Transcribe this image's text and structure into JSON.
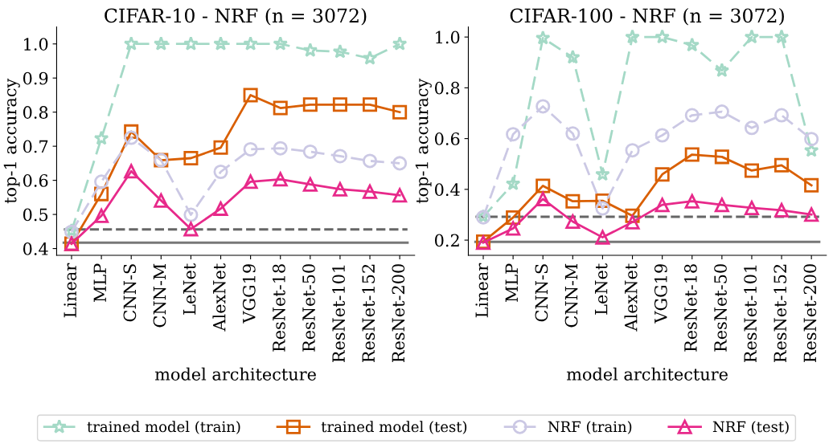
{
  "chart_data": [
    {
      "type": "line",
      "title": "CIFAR-10 - NRF (n = 3072)",
      "xlabel": "model architecture",
      "ylabel": "top-1 accuracy",
      "categories": [
        "Linear",
        "MLP",
        "CNN-S",
        "CNN-M",
        "LeNet",
        "AlexNet",
        "VGG19",
        "ResNet-18",
        "ResNet-50",
        "ResNet-101",
        "ResNet-152",
        "ResNet-200"
      ],
      "series": [
        {
          "name": "trained model (train)",
          "color": "#a4d9c6",
          "marker": "star",
          "line_style": "dashed",
          "values": [
            0.452,
            0.723,
            1.0,
            1.0,
            1.0,
            1.0,
            1.0,
            1.0,
            0.981,
            0.977,
            0.958,
            1.0
          ]
        },
        {
          "name": "trained model (test)",
          "color": "#d95f02",
          "marker": "square",
          "line_style": "solid",
          "values": [
            0.414,
            0.56,
            0.743,
            0.659,
            0.665,
            0.696,
            0.85,
            0.812,
            0.822,
            0.822,
            0.822,
            0.8
          ]
        },
        {
          "name": "NRF (train)",
          "color": "#cbc8e4",
          "marker": "circle",
          "line_style": "dashed",
          "values": [
            0.449,
            0.596,
            0.725,
            0.659,
            0.499,
            0.625,
            0.691,
            0.694,
            0.684,
            0.671,
            0.657,
            0.65
          ]
        },
        {
          "name": "NRF (test)",
          "color": "#e7298a",
          "marker": "triangle",
          "line_style": "solid",
          "values": [
            0.414,
            0.496,
            0.627,
            0.541,
            0.457,
            0.517,
            0.596,
            0.603,
            0.588,
            0.574,
            0.567,
            0.556
          ]
        }
      ],
      "ref_lines": [
        {
          "axis": "y",
          "value": 0.456,
          "color": "#666666",
          "line_style": "dashed"
        },
        {
          "axis": "y",
          "value": 0.417,
          "color": "#777777",
          "line_style": "solid"
        }
      ],
      "ylim": [
        0.38,
        1.05
      ],
      "yticks": [
        {
          "value": 0.4,
          "label": "0.4"
        },
        {
          "value": 0.5,
          "label": "0.5"
        },
        {
          "value": 0.6,
          "label": "0.6"
        },
        {
          "value": 0.7,
          "label": "0.7"
        },
        {
          "value": 0.8,
          "label": "0.8"
        },
        {
          "value": 0.9,
          "label": "0.9"
        },
        {
          "value": 1.0,
          "label": "1.0"
        }
      ],
      "legend": "bottom",
      "grid": false
    },
    {
      "type": "line",
      "title": "CIFAR-100 - NRF (n = 3072)",
      "xlabel": "model architecture",
      "ylabel": "top-1 accuracy",
      "categories": [
        "Linear",
        "MLP",
        "CNN-S",
        "CNN-M",
        "LeNet",
        "AlexNet",
        "VGG19",
        "ResNet-18",
        "ResNet-50",
        "ResNet-101",
        "ResNet-152",
        "ResNet-200"
      ],
      "series": [
        {
          "color": "#a4d9c6",
          "marker": "star",
          "line_style": "dashed",
          "values": [
            0.292,
            0.422,
            0.996,
            0.92,
            0.459,
            1.0,
            1.0,
            0.968,
            0.868,
            1.0,
            1.0,
            0.553
          ]
        },
        {
          "color": "#d95f02",
          "marker": "square",
          "line_style": "solid",
          "values": [
            0.194,
            0.289,
            0.414,
            0.353,
            0.355,
            0.296,
            0.459,
            0.537,
            0.528,
            0.474,
            0.495,
            0.416
          ]
        },
        {
          "color": "#cbc8e4",
          "marker": "circle",
          "line_style": "dashed",
          "values": [
            0.29,
            0.617,
            0.727,
            0.62,
            0.325,
            0.554,
            0.613,
            0.692,
            0.706,
            0.642,
            0.692,
            0.598
          ]
        },
        {
          "color": "#e7298a",
          "marker": "triangle",
          "line_style": "solid",
          "values": [
            0.19,
            0.246,
            0.362,
            0.273,
            0.211,
            0.271,
            0.339,
            0.353,
            0.339,
            0.327,
            0.318,
            0.301
          ]
        }
      ],
      "ref_lines": [
        {
          "axis": "y",
          "value": 0.292,
          "color": "#666666",
          "line_style": "dashed"
        },
        {
          "axis": "y",
          "value": 0.193,
          "color": "#777777",
          "line_style": "solid"
        }
      ],
      "ylim": [
        0.14,
        1.04
      ],
      "yticks": [
        {
          "value": 0.2,
          "label": "0.2"
        },
        {
          "value": 0.4,
          "label": "0.4"
        },
        {
          "value": 0.6,
          "label": "0.6"
        },
        {
          "value": 0.8,
          "label": "0.8"
        },
        {
          "value": 1.0,
          "label": "1.0"
        }
      ],
      "legend": false,
      "grid": false
    }
  ]
}
